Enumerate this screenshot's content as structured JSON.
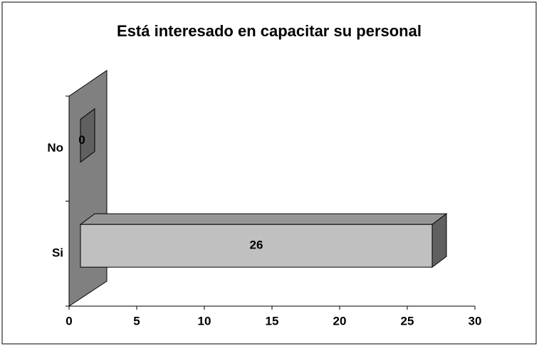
{
  "chart_data": {
    "type": "bar3d_horizontal",
    "title": "Está interesado en capacitar su personal",
    "categories": [
      "No",
      "Si"
    ],
    "values": [
      0,
      26
    ],
    "color": "#c0c0c0",
    "xlim": [
      0,
      30
    ],
    "xticks": [
      0,
      5,
      10,
      15,
      20,
      25,
      30
    ]
  }
}
